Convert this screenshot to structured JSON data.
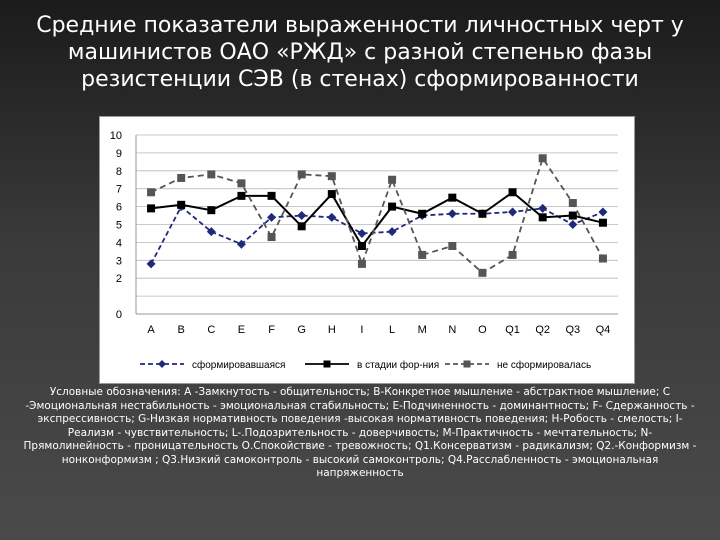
{
  "slide": {
    "title": "Средние показатели выраженности личностных черт у машинистов  ОАО «РЖД»  с разной степенью фазы резистенции СЭВ  (в стенах) сформированности",
    "legend_text": "Условные обозначения: А -Замкнутость - общительность; В-Конкретное мышление - абстрактное мышление; С -Эмоциональная нестабильность - эмоциональная стабильность; Е-Подчиненность - доминантность; F- Сдержанность - экспрессивность; G-Низкая нормативность поведения -высокая нормативность поведения; Н-Робость - смелость; I-Реализм - чувствительность; L-.Подозрительность - доверчивость; М-Практичность - мечтательность; N-Прямолинейность - проницательность О.Спокойствие - тревожность; Q1.Консерватизм - радикализм; Q2.-Конформизм - нонконформизм ; Q3.Низкий самоконтроль - высокий самоконтроль; Q4.Расслабленность - эмоциональная напряженность"
  },
  "chart_data": {
    "type": "line",
    "categories": [
      "A",
      "B",
      "C",
      "E",
      "F",
      "G",
      "H",
      "I",
      "L",
      "M",
      "N",
      "O",
      "Q1",
      "Q2",
      "Q3",
      "Q4"
    ],
    "y_ticks": [
      "0",
      "",
      "2",
      "3",
      "4",
      "5",
      "6",
      "7",
      "8",
      "9",
      "10"
    ],
    "ylim": [
      0,
      10
    ],
    "grid": true,
    "legend_position": "bottom",
    "series": [
      {
        "name": "сформировавшаяся",
        "color": "#1f2a7a",
        "line": "dashed",
        "marker": "diamond",
        "values": [
          2.8,
          6.0,
          4.6,
          3.9,
          5.4,
          5.5,
          5.4,
          4.5,
          4.6,
          5.5,
          5.6,
          5.6,
          5.7,
          5.9,
          5.0,
          5.7
        ]
      },
      {
        "name": "в стадии фор-ния",
        "color": "#000000",
        "line": "solid",
        "marker": "square",
        "values": [
          5.9,
          6.1,
          5.8,
          6.6,
          6.6,
          4.9,
          6.7,
          3.8,
          6.0,
          5.6,
          6.5,
          5.6,
          6.8,
          5.4,
          5.5,
          5.1
        ]
      },
      {
        "name": "не сформировалась",
        "color": "#555555",
        "line": "dashed",
        "marker": "square",
        "values": [
          6.8,
          7.6,
          7.8,
          7.3,
          4.3,
          7.8,
          7.7,
          2.8,
          7.5,
          3.3,
          3.8,
          2.3,
          3.3,
          8.7,
          6.2,
          3.1
        ]
      }
    ]
  }
}
